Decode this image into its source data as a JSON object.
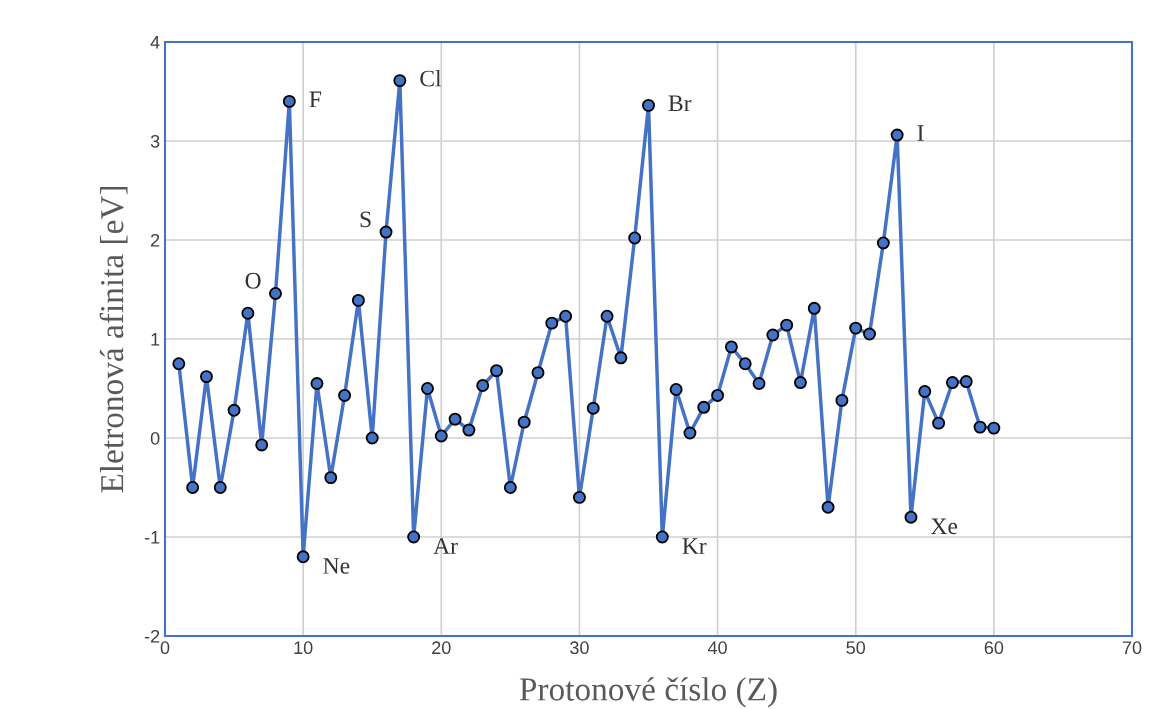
{
  "chart_data": {
    "type": "line",
    "xlabel": "Protonové číslo (Z)",
    "ylabel": "Eletronová afinita [eV]",
    "x": [
      1,
      2,
      3,
      4,
      5,
      6,
      7,
      8,
      9,
      10,
      11,
      12,
      13,
      14,
      15,
      16,
      17,
      18,
      19,
      20,
      21,
      22,
      23,
      24,
      25,
      26,
      27,
      28,
      29,
      30,
      31,
      32,
      33,
      34,
      35,
      36,
      37,
      38,
      39,
      40,
      41,
      42,
      43,
      44,
      45,
      46,
      47,
      48,
      49,
      50,
      51,
      52,
      53,
      54,
      55,
      56,
      57,
      58,
      59,
      60
    ],
    "series": [
      {
        "color": "#4472c4",
        "values": [
          0.75,
          -0.5,
          0.62,
          -0.5,
          0.28,
          1.26,
          -0.07,
          1.46,
          3.4,
          -1.2,
          0.55,
          -0.4,
          0.43,
          1.39,
          0,
          2.08,
          3.61,
          -1.0,
          0.5,
          0.02,
          0.19,
          0.08,
          0.53,
          0.68,
          -0.5,
          0.16,
          0.66,
          1.16,
          1.23,
          -0.6,
          0.3,
          1.23,
          0.81,
          2.02,
          3.36,
          -1.0,
          0.49,
          0.05,
          0.31,
          0.43,
          0.92,
          0.75,
          0.55,
          1.04,
          1.14,
          0.56,
          1.31,
          -0.7,
          0.38,
          1.11,
          1.05,
          1.97,
          3.06,
          -0.8,
          0.47,
          0.15,
          0.56,
          0.57,
          0.11,
          0.1
        ]
      }
    ],
    "xlim": [
      0,
      70
    ],
    "xticks": [
      0,
      10,
      20,
      30,
      40,
      50,
      60,
      70
    ],
    "ylim": [
      -2,
      4
    ],
    "yticks": [
      -2,
      -1,
      0,
      1,
      2,
      3,
      4
    ],
    "grid": true,
    "marker": "circle",
    "line_style": "solid",
    "annotations": [
      {
        "text": "O",
        "x": 8,
        "y": 1.46
      },
      {
        "text": "F",
        "x": 9,
        "y": 3.4
      },
      {
        "text": "Ne",
        "x": 10,
        "y": -1.2
      },
      {
        "text": "S",
        "x": 16,
        "y": 2.08
      },
      {
        "text": "Cl",
        "x": 17,
        "y": 3.61
      },
      {
        "text": "Ar",
        "x": 18,
        "y": -1.0
      },
      {
        "text": "Br",
        "x": 35,
        "y": 3.36
      },
      {
        "text": "Kr",
        "x": 36,
        "y": -1.0
      },
      {
        "text": "I",
        "x": 53,
        "y": 3.06
      },
      {
        "text": "Xe",
        "x": 54,
        "y": -0.8
      }
    ]
  }
}
